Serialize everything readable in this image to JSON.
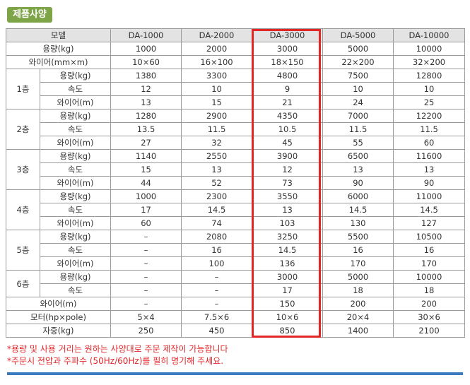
{
  "section_title": "제품사양",
  "table": {
    "header": [
      "모델",
      "DA-1000",
      "DA-2000",
      "DA-3000",
      "DA-5000",
      "DA-10000"
    ],
    "top_rows": [
      {
        "label": "용량(kg)",
        "values": [
          "1000",
          "2000",
          "3000",
          "5000",
          "10000"
        ]
      },
      {
        "label": "와이어(mm×m)",
        "values": [
          "10×60",
          "16×100",
          "18×150",
          "22×200",
          "32×200"
        ]
      }
    ],
    "floors": [
      {
        "floor": "1층",
        "rows": [
          {
            "label": "용량(kg)",
            "values": [
              "1380",
              "3300",
              "4800",
              "7500",
              "12800"
            ]
          },
          {
            "label": "속도",
            "values": [
              "12",
              "10",
              "9",
              "10",
              "10"
            ]
          },
          {
            "label": "와이어(m)",
            "values": [
              "13",
              "15",
              "21",
              "24",
              "25"
            ]
          }
        ]
      },
      {
        "floor": "2층",
        "rows": [
          {
            "label": "용량(kg)",
            "values": [
              "1280",
              "2900",
              "4350",
              "7000",
              "12200"
            ]
          },
          {
            "label": "속도",
            "values": [
              "13.5",
              "11.5",
              "10.5",
              "11.5",
              "11.5"
            ]
          },
          {
            "label": "와이어(m)",
            "values": [
              "27",
              "32",
              "45",
              "55",
              "60"
            ]
          }
        ]
      },
      {
        "floor": "3층",
        "rows": [
          {
            "label": "용량(kg)",
            "values": [
              "1140",
              "2550",
              "3900",
              "6500",
              "11600"
            ]
          },
          {
            "label": "속도",
            "values": [
              "15",
              "13",
              "12",
              "13",
              "13"
            ]
          },
          {
            "label": "와이어(m)",
            "values": [
              "44",
              "52",
              "73",
              "90",
              "90"
            ]
          }
        ]
      },
      {
        "floor": "4층",
        "rows": [
          {
            "label": "용량(kg)",
            "values": [
              "1000",
              "2300",
              "3550",
              "6000",
              "11000"
            ]
          },
          {
            "label": "속도",
            "values": [
              "17",
              "14.5",
              "13",
              "14.5",
              "14.5"
            ]
          },
          {
            "label": "와이어(m)",
            "values": [
              "60",
              "74",
              "103",
              "130",
              "127"
            ]
          }
        ]
      },
      {
        "floor": "5층",
        "rows": [
          {
            "label": "용량(kg)",
            "values": [
              "–",
              "2080",
              "3250",
              "5500",
              "10500"
            ]
          },
          {
            "label": "속도",
            "values": [
              "–",
              "16",
              "14.5",
              "16",
              "16"
            ]
          },
          {
            "label": "와이어(m)",
            "values": [
              "–",
              "100",
              "136",
              "170",
              "170"
            ]
          }
        ]
      },
      {
        "floor": "6층",
        "rows": [
          {
            "label": "용량(kg)",
            "values": [
              "–",
              "–",
              "3000",
              "5000",
              "10000"
            ]
          },
          {
            "label": "속도",
            "values": [
              "–",
              "–",
              "17",
              "18",
              "18"
            ]
          }
        ]
      }
    ],
    "bottom_rows": [
      {
        "label": "와이어(m)",
        "values": [
          "–",
          "–",
          "150",
          "200",
          "200"
        ]
      },
      {
        "label": "모터(hp×pole)",
        "values": [
          "5×4",
          "7.5×6",
          "10×6",
          "20×4",
          "30×6"
        ]
      },
      {
        "label": "자중(kg)",
        "values": [
          "250",
          "450",
          "850",
          "1400",
          "2100"
        ]
      }
    ],
    "highlight_color": "#e12626"
  },
  "notes": [
    "*용량 및 사용 거리는 원하는 사양대로 주문 제작이 가능합니다",
    "*주문시 전압과 주파수 (50Hz/60Hz)를 필히 명기해 주세요."
  ],
  "colors": {
    "badge": "#7da447",
    "rule": "#3a7bbf",
    "note": "#e3262a",
    "header_bg": "#e3e3e3"
  }
}
